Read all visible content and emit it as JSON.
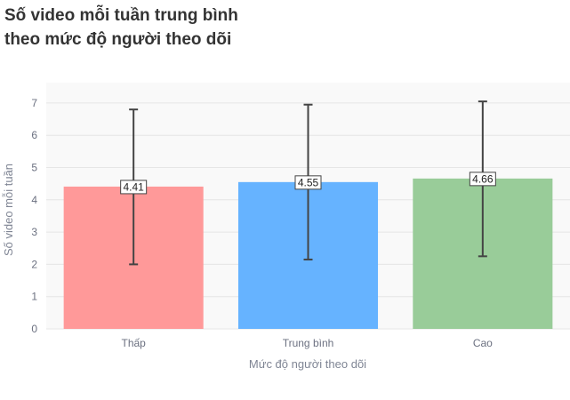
{
  "title_lines": [
    "Số video mỗi tuần trung bình",
    "theo mức độ người theo dõi"
  ],
  "chart_data": {
    "type": "bar",
    "title": "Số video mỗi tuần trung bình theo mức độ người theo dõi",
    "xlabel": "Mức độ người theo dõi",
    "ylabel": "Số video mỗi tuần",
    "categories": [
      "Thấp",
      "Trung bình",
      "Cao"
    ],
    "values": [
      4.41,
      4.55,
      4.66
    ],
    "value_labels": [
      "4.41",
      "4.55",
      "4.66"
    ],
    "error_low": [
      2.0,
      2.15,
      2.25
    ],
    "error_high": [
      6.8,
      6.95,
      7.05
    ],
    "colors": [
      "#ff9999",
      "#66b3ff",
      "#99cc99"
    ],
    "ylim": [
      0,
      7.4
    ],
    "yticks": [
      0,
      1,
      2,
      3,
      4,
      5,
      6,
      7
    ],
    "grid": true,
    "legend": "none"
  }
}
